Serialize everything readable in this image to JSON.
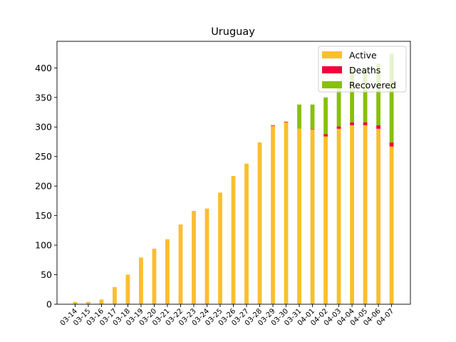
{
  "chart_data": {
    "type": "bar",
    "stacked": true,
    "title": "Uruguay",
    "xlabel": "",
    "ylabel": "",
    "ylim": [
      0,
      445
    ],
    "yticks": [
      0,
      50,
      100,
      150,
      200,
      250,
      300,
      350,
      400
    ],
    "categories": [
      "03-14",
      "03-15",
      "03-16",
      "03-17",
      "03-18",
      "03-19",
      "03-20",
      "03-21",
      "03-22",
      "03-23",
      "03-24",
      "03-25",
      "03-26",
      "03-27",
      "03-28",
      "03-29",
      "03-30",
      "03-31",
      "04-01",
      "04-02",
      "04-03",
      "04-04",
      "04-05",
      "04-06",
      "04-07"
    ],
    "series": [
      {
        "name": "Active",
        "color": "#fbbf2c",
        "values": [
          4,
          4,
          8,
          29,
          50,
          79,
          94,
          110,
          135,
          158,
          162,
          189,
          217,
          238,
          274,
          302,
          308,
          297,
          296,
          284,
          297,
          303,
          303,
          297,
          267
        ]
      },
      {
        "name": "Deaths",
        "color": "#f0003c",
        "values": [
          0,
          0,
          0,
          0,
          0,
          0,
          0,
          0,
          0,
          0,
          0,
          0,
          0,
          0,
          0,
          1,
          1,
          0,
          1,
          4,
          4,
          5,
          5,
          6,
          7
        ]
      },
      {
        "name": "Recovered",
        "color": "#88c00a",
        "values": [
          0,
          0,
          0,
          0,
          0,
          0,
          0,
          0,
          0,
          0,
          0,
          0,
          0,
          0,
          0,
          0,
          0,
          41,
          41,
          62,
          65,
          92,
          92,
          104,
          150
        ]
      }
    ],
    "legend": {
      "position": "top-right",
      "entries": [
        "Active",
        "Deaths",
        "Recovered"
      ]
    },
    "grid": false
  }
}
